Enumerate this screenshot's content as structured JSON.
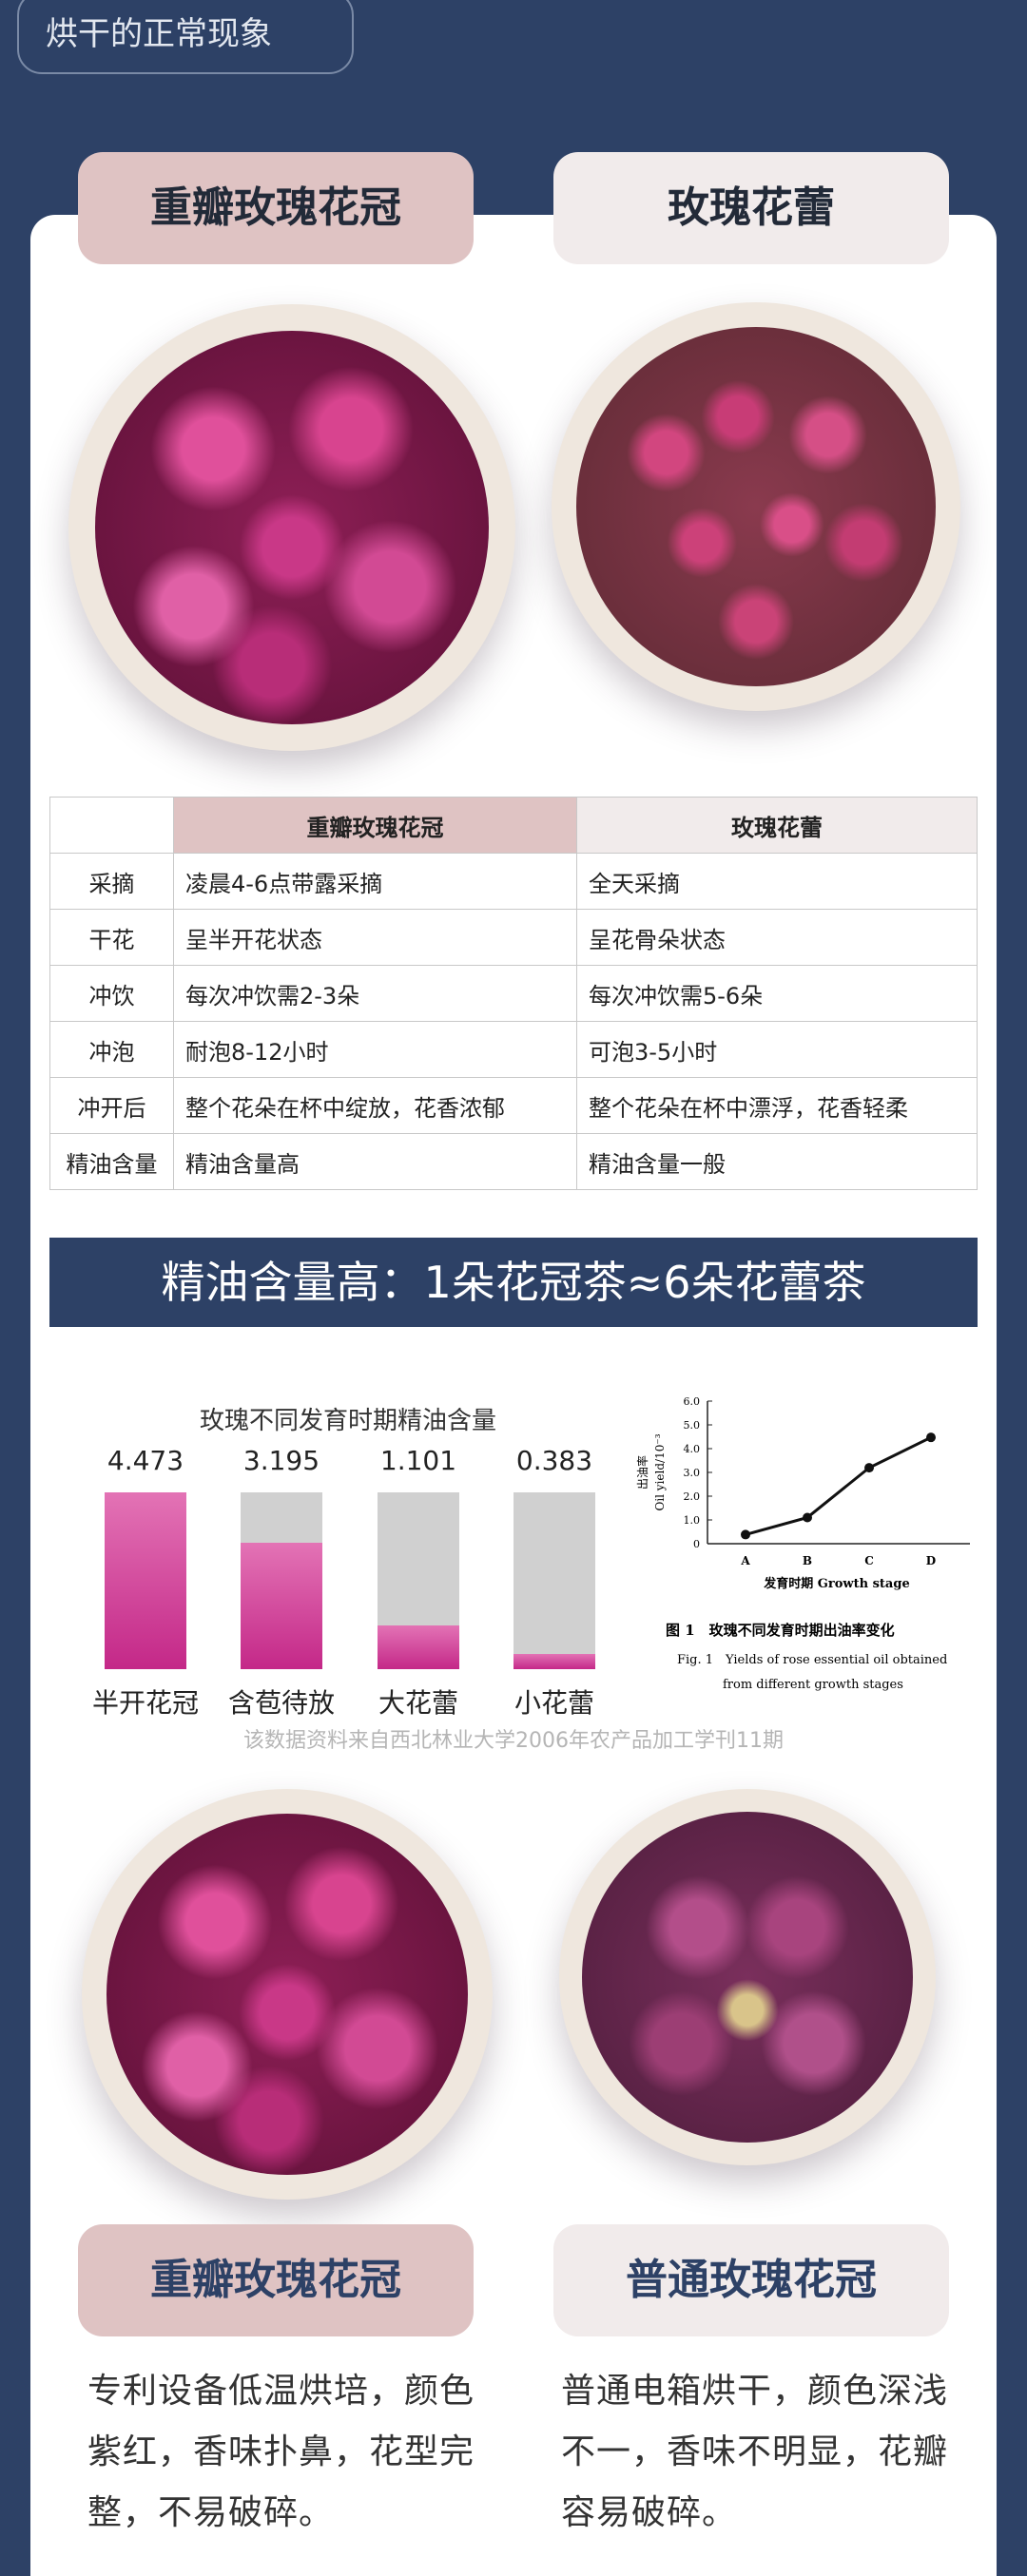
{
  "top_pill": "烘干的正常现象",
  "tabs": {
    "left": "重瓣玫瑰花冠",
    "right": "玫瑰花蕾"
  },
  "table": {
    "headers": [
      "",
      "重瓣玫瑰花冠",
      "玫瑰花蕾"
    ],
    "rows": [
      {
        "label": "采摘",
        "crown": "凌晨4-6点带露采摘",
        "bud": "全天采摘"
      },
      {
        "label": "干花",
        "crown": "呈半开花状态",
        "bud": "呈花骨朵状态"
      },
      {
        "label": "冲饮",
        "crown": "每次冲饮需2-3朵",
        "bud": "每次冲饮需5-6朵"
      },
      {
        "label": "冲泡",
        "crown": "耐泡8-12小时",
        "bud": "可泡3-5小时"
      },
      {
        "label": "冲开后",
        "crown": "整个花朵在杯中绽放，花香浓郁",
        "bud": "整个花朵在杯中漂浮，花香轻柔"
      },
      {
        "label": "精油含量",
        "crown": "精油含量高",
        "bud": "精油含量一般"
      }
    ]
  },
  "banner": "精油含量高：1朵花冠茶≈6朵花蕾茶",
  "chart_data": [
    {
      "type": "bar",
      "title": "玫瑰不同发育时期精油含量",
      "categories": [
        "半开花冠",
        "含苞待放",
        "大花蕾",
        "小花蕾"
      ],
      "values": [
        4.473,
        3.195,
        1.101,
        0.383
      ],
      "value_labels": [
        "4.473",
        "3.195",
        "1.101",
        "0.383"
      ],
      "ylim": [
        0,
        4.473
      ],
      "colors": {
        "fill": "#c42888",
        "track": "#d0d0d0"
      }
    },
    {
      "type": "line",
      "x": [
        "A",
        "B",
        "C",
        "D"
      ],
      "values": [
        0.383,
        1.101,
        3.195,
        4.473
      ],
      "ylim": [
        0,
        6.0
      ],
      "yticks": [
        "0",
        "1.0",
        "2.0",
        "3.0",
        "4.0",
        "5.0",
        "6.0"
      ],
      "ylabel_cn": "出油率",
      "ylabel_en": "Oil yield/10⁻³",
      "xlabel": "发育时期 Growth stage",
      "caption_cn": "图 1　玫瑰不同发育时期出油率变化",
      "caption_en_1": "Fig. 1　Yields of rose essential oil obtained",
      "caption_en_2": "from different growth stages"
    }
  ],
  "source_note": "该数据资料来自西北林业大学2006年农产品加工学刊11期",
  "bottom_tabs": {
    "left": "重瓣玫瑰花冠",
    "right": "普通玫瑰花冠"
  },
  "descriptions": {
    "left": [
      "专利设备低温烘培，颜色",
      "紫红，香味扑鼻，花型完",
      "整，不易破碎。"
    ],
    "right": [
      "普通电箱烘干，颜色深浅",
      "不一，香味不明显，花瓣",
      "容易破碎。"
    ]
  }
}
